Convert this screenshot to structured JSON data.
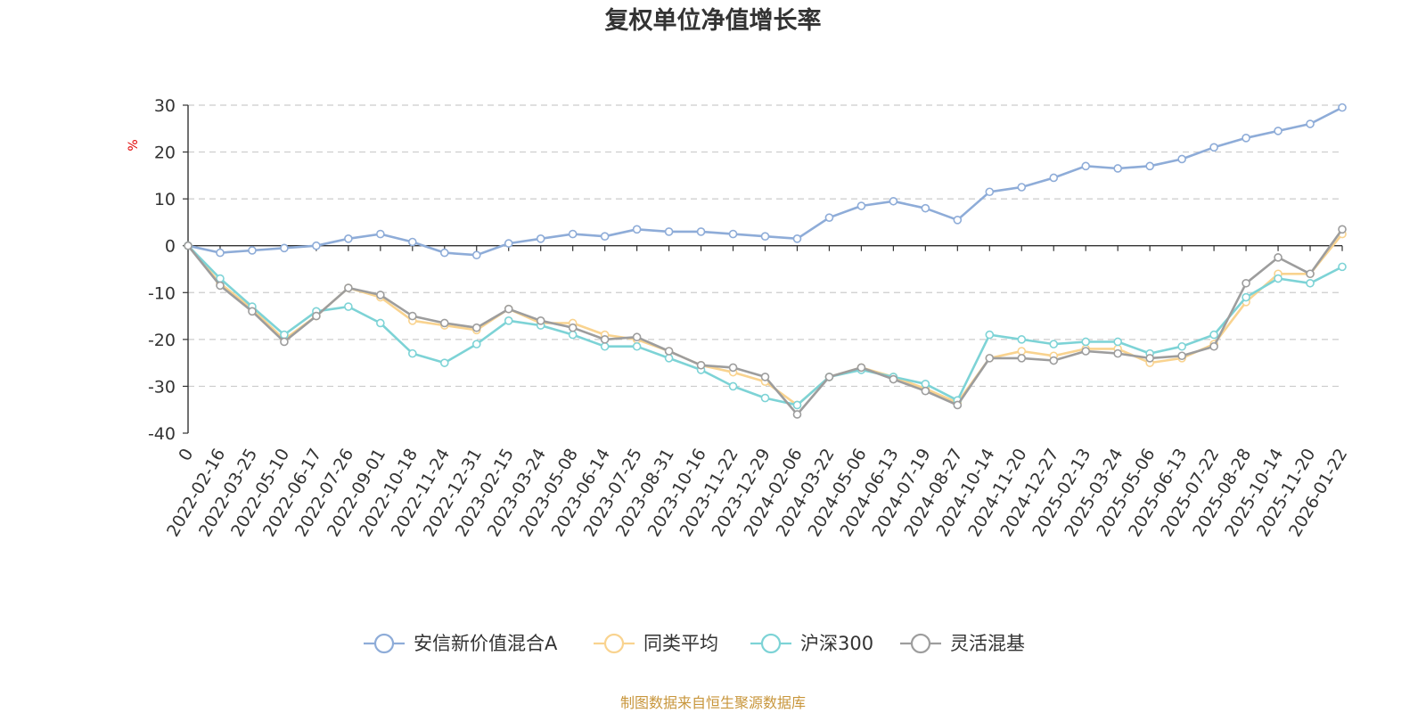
{
  "chart_data": {
    "type": "line",
    "title": "复权单位净值增长率",
    "ylabel": "%",
    "xlabel": "",
    "ylim": [
      -40,
      30
    ],
    "yticks": [
      30,
      20,
      10,
      0,
      -10,
      -20,
      -30,
      -40
    ],
    "x": [
      "0",
      "2022-02-16",
      "2022-03-25",
      "2022-05-10",
      "2022-06-17",
      "2022-07-26",
      "2022-09-01",
      "2022-10-18",
      "2022-11-24",
      "2022-12-31",
      "2023-02-15",
      "2023-03-24",
      "2023-05-08",
      "2023-06-14",
      "2023-07-25",
      "2023-08-31",
      "2023-10-16",
      "2023-11-22",
      "2023-12-29",
      "2024-02-06",
      "2024-03-22",
      "2024-05-06",
      "2024-06-13",
      "2024-07-19",
      "2024-08-27",
      "2024-10-14",
      "2024-11-20",
      "2024-12-27",
      "2025-02-13",
      "2025-03-24",
      "2025-05-06",
      "2025-06-13",
      "2025-07-22",
      "2025-08-28",
      "2025-10-14",
      "2025-11-20",
      "2026-01-22"
    ],
    "grid": true,
    "legend_position": "bottom",
    "series": [
      {
        "name": "安信新价值混合A",
        "color": "#8eacd8",
        "values": [
          0,
          -1.5,
          -1.0,
          -0.5,
          0.0,
          1.5,
          2.5,
          0.8,
          -1.5,
          -2.0,
          0.5,
          1.5,
          2.5,
          2.0,
          3.5,
          3.0,
          3.0,
          2.5,
          2.0,
          1.5,
          6.0,
          8.5,
          9.5,
          8.0,
          5.5,
          11.5,
          12.5,
          14.5,
          17.0,
          16.5,
          17.0,
          18.5,
          21.0,
          23.0,
          24.5,
          26.0,
          29.5
        ]
      },
      {
        "name": "同类平均",
        "color": "#f9d38f",
        "values": [
          0,
          -8.0,
          -13.5,
          -20.0,
          -15.0,
          -9.0,
          -11.0,
          -16.0,
          -17.0,
          -18.0,
          -13.5,
          -16.5,
          -16.5,
          -19.0,
          -20.0,
          -22.5,
          -25.5,
          -27.0,
          -29.0,
          -34.0,
          -28.0,
          -26.0,
          -28.0,
          -30.5,
          -33.5,
          -24.0,
          -22.5,
          -23.5,
          -22.0,
          -22.0,
          -25.0,
          -24.0,
          -21.0,
          -12.0,
          -6.0,
          -6.0,
          2.5
        ]
      },
      {
        "name": "沪深300",
        "color": "#7dd3d6",
        "values": [
          0,
          -7.0,
          -13.0,
          -19.0,
          -14.0,
          -13.0,
          -16.5,
          -23.0,
          -25.0,
          -21.0,
          -16.0,
          -17.0,
          -19.0,
          -21.5,
          -21.5,
          -24.0,
          -26.5,
          -30.0,
          -32.5,
          -34.0,
          -28.0,
          -26.5,
          -28.0,
          -29.5,
          -33.0,
          -19.0,
          -20.0,
          -21.0,
          -20.5,
          -20.5,
          -23.0,
          -21.5,
          -19.0,
          -11.0,
          -7.0,
          -8.0,
          -4.5
        ]
      },
      {
        "name": "灵活混基",
        "color": "#9d9d9d",
        "values": [
          0,
          -8.5,
          -14.0,
          -20.5,
          -15.0,
          -9.0,
          -10.5,
          -15.0,
          -16.5,
          -17.5,
          -13.5,
          -16.0,
          -17.5,
          -20.0,
          -19.5,
          -22.5,
          -25.5,
          -26.0,
          -28.0,
          -36.0,
          -28.0,
          -26.0,
          -28.5,
          -31.0,
          -34.0,
          -24.0,
          -24.0,
          -24.5,
          -22.5,
          -23.0,
          -24.0,
          -23.5,
          -21.5,
          -8.0,
          -2.5,
          -6.0,
          3.5
        ]
      }
    ]
  },
  "source_note": "制图数据来自恒生聚源数据库"
}
